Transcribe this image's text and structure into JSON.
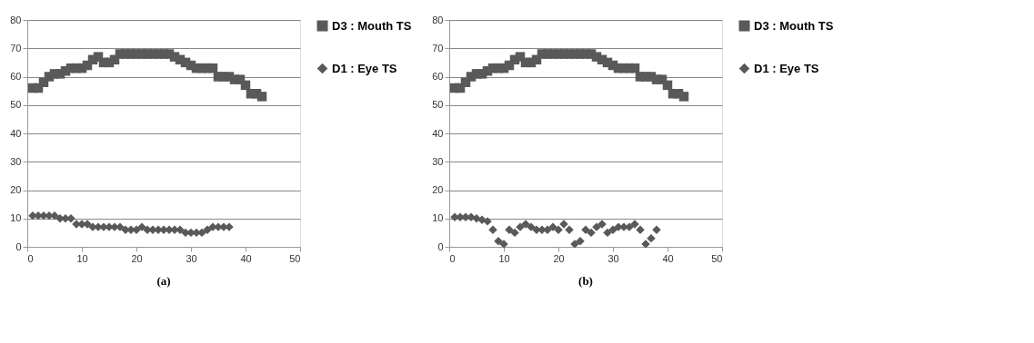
{
  "chart_data": [
    {
      "type": "scatter",
      "annotations": [
        "(a)"
      ],
      "xlim": [
        0,
        50
      ],
      "xticks": [
        0,
        10,
        20,
        30,
        40,
        50
      ],
      "ylim": [
        0,
        80
      ],
      "yticks": [
        0,
        10,
        20,
        30,
        40,
        50,
        60,
        70,
        80
      ],
      "grid": "y",
      "legend": "right",
      "series": [
        {
          "name": "D3 : Mouth TS",
          "color": "#595959",
          "marker": "square",
          "x": [
            1,
            2,
            3,
            4,
            5,
            6,
            7,
            8,
            9,
            10,
            11,
            12,
            13,
            14,
            15,
            16,
            17,
            18,
            19,
            20,
            21,
            22,
            23,
            24,
            25,
            26,
            27,
            28,
            29,
            30,
            31,
            32,
            33,
            34,
            35,
            36,
            37,
            38,
            39,
            40,
            41,
            42,
            43
          ],
          "values": [
            56,
            56,
            58,
            60,
            61,
            61,
            62,
            63,
            63,
            63,
            64,
            66,
            67,
            65,
            65,
            66,
            68,
            68,
            68,
            68,
            68,
            68,
            68,
            68,
            68,
            68,
            67,
            66,
            65,
            64,
            63,
            63,
            63,
            63,
            60,
            60,
            60,
            59,
            59,
            57,
            54,
            54,
            53
          ]
        },
        {
          "name": "D1 : Eye TS",
          "color": "#595959",
          "marker": "diamond",
          "x": [
            1,
            2,
            3,
            4,
            5,
            6,
            7,
            8,
            9,
            10,
            11,
            12,
            13,
            14,
            15,
            16,
            17,
            18,
            19,
            20,
            21,
            22,
            23,
            24,
            25,
            26,
            27,
            28,
            29,
            30,
            31,
            32,
            33,
            34,
            35,
            36,
            37
          ],
          "values": [
            11,
            11,
            11,
            11,
            11,
            10,
            10,
            10,
            8,
            8,
            8,
            7,
            7,
            7,
            7,
            7,
            7,
            6,
            6,
            6,
            7,
            6,
            6,
            6,
            6,
            6,
            6,
            6,
            5,
            5,
            5,
            5,
            6,
            7,
            7,
            7,
            7
          ]
        }
      ]
    },
    {
      "type": "scatter",
      "annotations": [
        "(b)"
      ],
      "xlim": [
        0,
        50
      ],
      "xticks": [
        0,
        10,
        20,
        30,
        40,
        50
      ],
      "ylim": [
        0,
        80
      ],
      "yticks": [
        0,
        10,
        20,
        30,
        40,
        50,
        60,
        70,
        80
      ],
      "grid": "y",
      "legend": "right",
      "series": [
        {
          "name": "D3 : Mouth TS",
          "color": "#595959",
          "marker": "square",
          "x": [
            1,
            2,
            3,
            4,
            5,
            6,
            7,
            8,
            9,
            10,
            11,
            12,
            13,
            14,
            15,
            16,
            17,
            18,
            19,
            20,
            21,
            22,
            23,
            24,
            25,
            26,
            27,
            28,
            29,
            30,
            31,
            32,
            33,
            34,
            35,
            36,
            37,
            38,
            39,
            40,
            41,
            42,
            43
          ],
          "values": [
            56,
            56,
            58,
            60,
            61,
            61,
            62,
            63,
            63,
            63,
            64,
            66,
            67,
            65,
            65,
            66,
            68,
            68,
            68,
            68,
            68,
            68,
            68,
            68,
            68,
            68,
            67,
            66,
            65,
            64,
            63,
            63,
            63,
            63,
            60,
            60,
            60,
            59,
            59,
            57,
            54,
            54,
            53
          ]
        },
        {
          "name": "D1 : Eye TS",
          "color": "#595959",
          "marker": "diamond",
          "x": [
            1,
            2,
            3,
            4,
            5,
            6,
            7,
            8,
            9,
            10,
            11,
            12,
            13,
            14,
            15,
            16,
            17,
            18,
            19,
            20,
            21,
            22,
            23,
            24,
            25,
            26,
            27,
            28,
            29,
            30,
            31,
            32,
            33,
            34,
            35,
            36,
            37,
            38
          ],
          "values": [
            10.5,
            10.5,
            10.5,
            10.5,
            10,
            9.5,
            9,
            6,
            2,
            1,
            6,
            5,
            7,
            8,
            7,
            6,
            6,
            6,
            7,
            6,
            8,
            6,
            1,
            2,
            6,
            5,
            7,
            8,
            5,
            6,
            7,
            7,
            7,
            8,
            6,
            1,
            3,
            6
          ]
        }
      ]
    }
  ]
}
